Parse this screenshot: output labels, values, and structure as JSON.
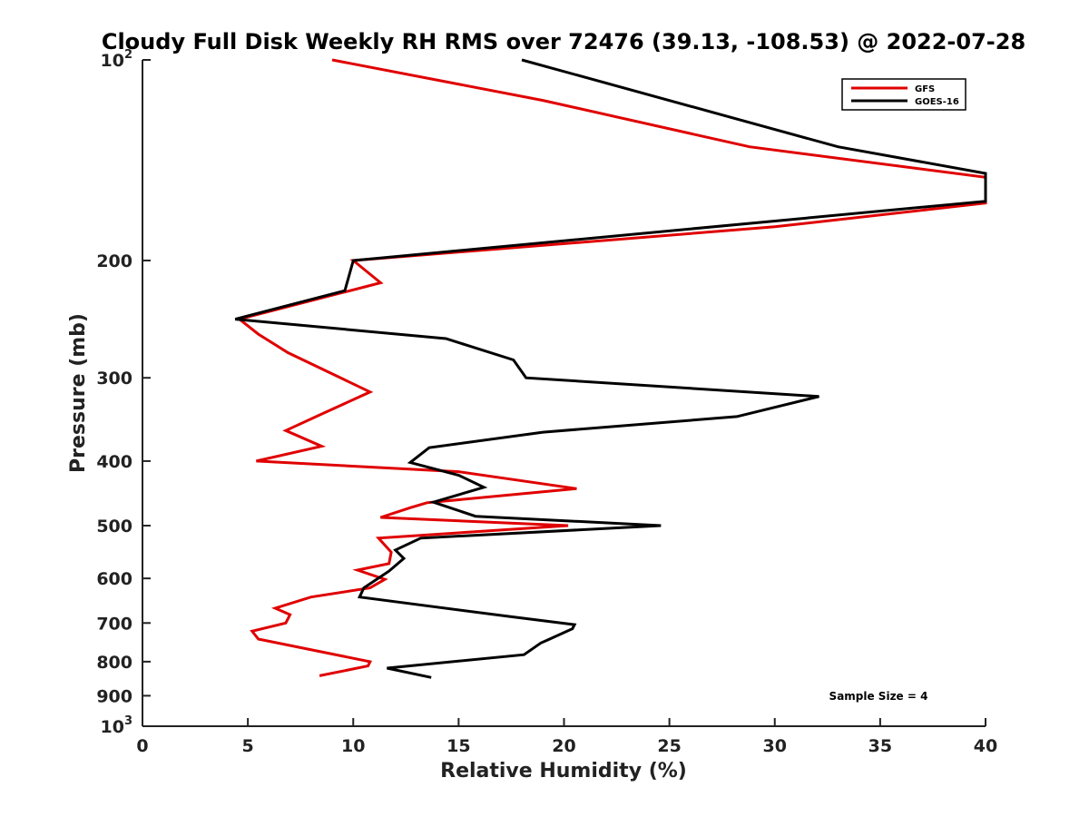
{
  "chart_data": {
    "type": "line",
    "title": "Cloudy Full Disk Weekly RH RMS over 72476 (39.13, -108.53) @ 2022-07-28",
    "xlabel": "Relative Humidity (%)",
    "ylabel": "Pressure (mb)",
    "xlim": [
      0,
      40
    ],
    "ylim": [
      1000,
      100
    ],
    "y_scale": "log",
    "y_reversed": true,
    "x_ticks": [
      "0",
      "5",
      "10",
      "15",
      "20",
      "25",
      "30",
      "35",
      "40"
    ],
    "y_ticks": [
      {
        "value": 100,
        "base": "10",
        "exp": "2"
      },
      {
        "value": 200,
        "label": "200"
      },
      {
        "value": 300,
        "label": "300"
      },
      {
        "value": 400,
        "label": "400"
      },
      {
        "value": 500,
        "label": "500"
      },
      {
        "value": 600,
        "label": "600"
      },
      {
        "value": 700,
        "label": "700"
      },
      {
        "value": 800,
        "label": "800"
      },
      {
        "value": 900,
        "label": "900"
      },
      {
        "value": 1000,
        "base": "10",
        "exp": "3"
      }
    ],
    "legend": {
      "placement": "top-right",
      "entries": [
        "GFS",
        "GOES-16"
      ]
    },
    "annotation": "Sample Size = 4",
    "series": [
      {
        "name": "GFS",
        "color": "#e00000",
        "points": [
          {
            "x": 9.0,
            "y": 100
          },
          {
            "x": 19.0,
            "y": 115
          },
          {
            "x": 28.8,
            "y": 135
          },
          {
            "x": 40.0,
            "y": 150
          },
          {
            "x": 40.0,
            "y": 164
          },
          {
            "x": 30.0,
            "y": 178
          },
          {
            "x": 10.0,
            "y": 200
          },
          {
            "x": 11.3,
            "y": 216
          },
          {
            "x": 4.6,
            "y": 245
          },
          {
            "x": 5.5,
            "y": 258
          },
          {
            "x": 6.9,
            "y": 275
          },
          {
            "x": 10.8,
            "y": 315
          },
          {
            "x": 8.5,
            "y": 340
          },
          {
            "x": 6.8,
            "y": 360
          },
          {
            "x": 8.5,
            "y": 380
          },
          {
            "x": 5.4,
            "y": 400
          },
          {
            "x": 15.0,
            "y": 415
          },
          {
            "x": 20.6,
            "y": 440
          },
          {
            "x": 13.5,
            "y": 462
          },
          {
            "x": 12.7,
            "y": 470
          },
          {
            "x": 11.3,
            "y": 486
          },
          {
            "x": 20.2,
            "y": 500
          },
          {
            "x": 11.2,
            "y": 522
          },
          {
            "x": 11.8,
            "y": 548
          },
          {
            "x": 11.7,
            "y": 570
          },
          {
            "x": 10.2,
            "y": 583
          },
          {
            "x": 11.5,
            "y": 602
          },
          {
            "x": 10.8,
            "y": 620
          },
          {
            "x": 8.0,
            "y": 640
          },
          {
            "x": 6.3,
            "y": 665
          },
          {
            "x": 7.0,
            "y": 680
          },
          {
            "x": 6.8,
            "y": 700
          },
          {
            "x": 5.2,
            "y": 720
          },
          {
            "x": 5.5,
            "y": 740
          },
          {
            "x": 10.8,
            "y": 800
          },
          {
            "x": 10.7,
            "y": 812
          },
          {
            "x": 8.4,
            "y": 840
          }
        ]
      },
      {
        "name": "GOES-16",
        "color": "#000000",
        "points": [
          {
            "x": 18.0,
            "y": 100
          },
          {
            "x": 33.0,
            "y": 135
          },
          {
            "x": 40.0,
            "y": 148
          },
          {
            "x": 40.0,
            "y": 163
          },
          {
            "x": 10.0,
            "y": 200
          },
          {
            "x": 9.6,
            "y": 222
          },
          {
            "x": 4.4,
            "y": 245
          },
          {
            "x": 14.4,
            "y": 262
          },
          {
            "x": 17.6,
            "y": 282
          },
          {
            "x": 18.2,
            "y": 300
          },
          {
            "x": 32.1,
            "y": 320
          },
          {
            "x": 28.2,
            "y": 343
          },
          {
            "x": 19.0,
            "y": 362
          },
          {
            "x": 13.6,
            "y": 382
          },
          {
            "x": 12.7,
            "y": 402
          },
          {
            "x": 15.0,
            "y": 420
          },
          {
            "x": 16.2,
            "y": 438
          },
          {
            "x": 13.8,
            "y": 461
          },
          {
            "x": 15.8,
            "y": 484
          },
          {
            "x": 24.6,
            "y": 500
          },
          {
            "x": 13.2,
            "y": 522
          },
          {
            "x": 12.0,
            "y": 544
          },
          {
            "x": 12.4,
            "y": 560
          },
          {
            "x": 11.7,
            "y": 585
          },
          {
            "x": 10.5,
            "y": 620
          },
          {
            "x": 10.3,
            "y": 640
          },
          {
            "x": 17.5,
            "y": 685
          },
          {
            "x": 20.5,
            "y": 704
          },
          {
            "x": 20.4,
            "y": 714
          },
          {
            "x": 19.2,
            "y": 743
          },
          {
            "x": 18.9,
            "y": 750
          },
          {
            "x": 18.1,
            "y": 781
          },
          {
            "x": 11.6,
            "y": 818
          },
          {
            "x": 13.7,
            "y": 845
          }
        ]
      }
    ]
  }
}
